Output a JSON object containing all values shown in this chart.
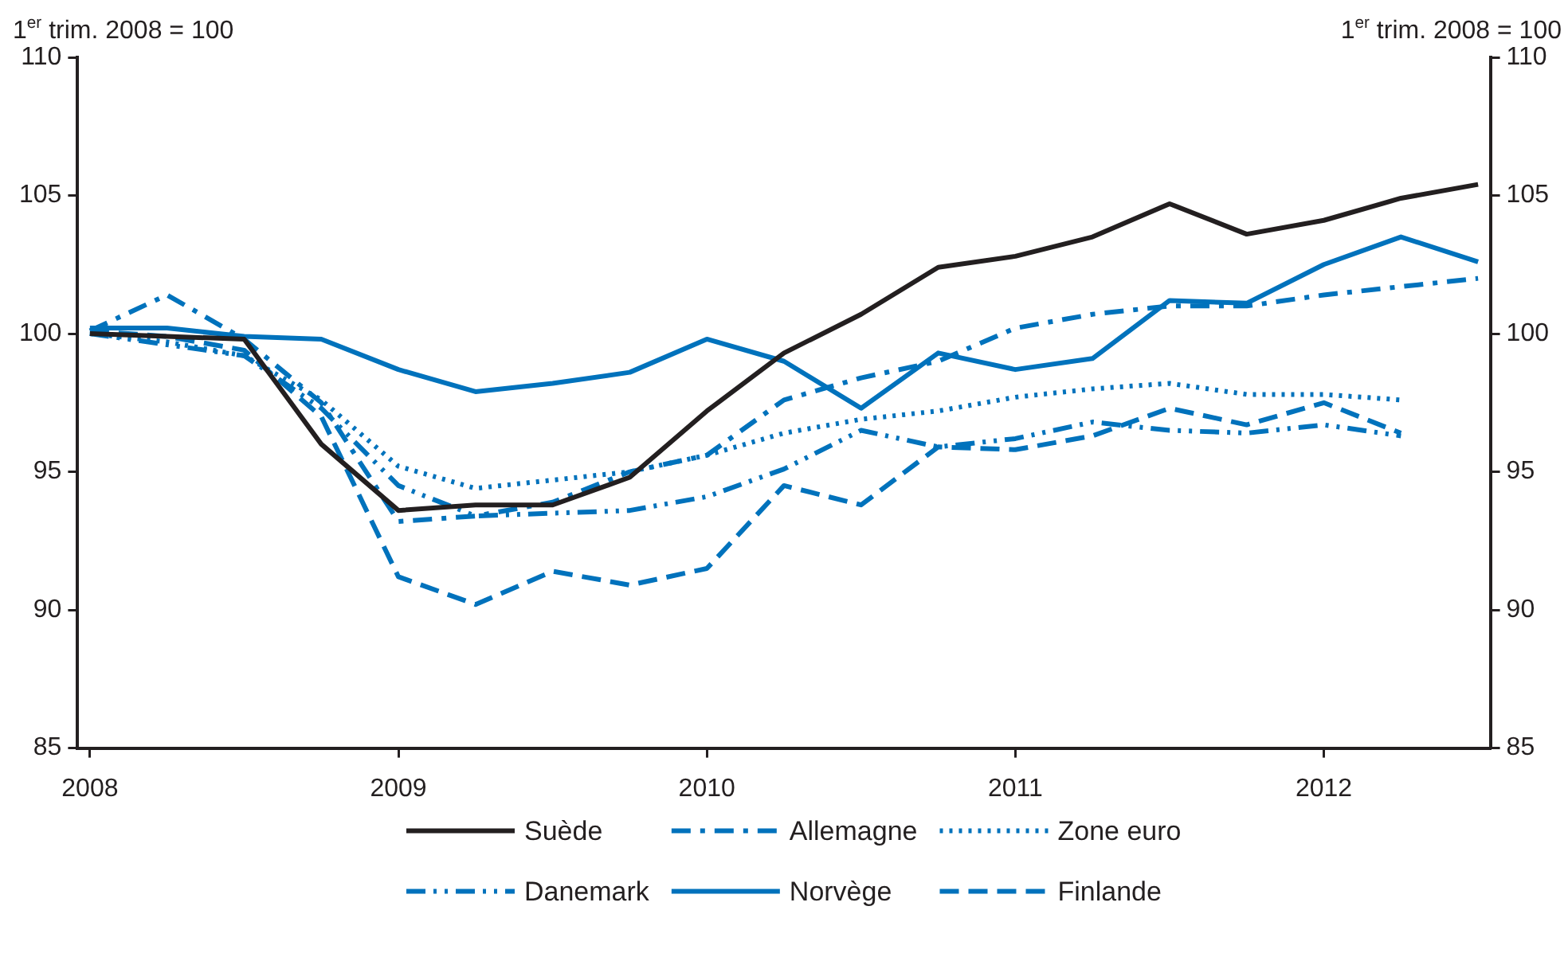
{
  "chart_data": {
    "type": "line",
    "ylabel": "1$^{er}$ trim. 2008 = 100",
    "y2label": "1$^{er}$ trim. 2008 = 100",
    "x": [
      2008,
      2008.25,
      2008.5,
      2008.75,
      2009,
      2009.25,
      2009.5,
      2009.75,
      2010,
      2010.25,
      2010.5,
      2010.75,
      2011,
      2011.25,
      2011.5,
      2011.75,
      2012,
      2012.25,
      2012.5
    ],
    "xlim": [
      2007.96,
      2012.54
    ],
    "xticks": [
      2008,
      2009,
      2010,
      2011,
      2012
    ],
    "ylim": [
      85,
      110
    ],
    "yticks": [
      85,
      90,
      95,
      100,
      105,
      110
    ],
    "y2lim": [
      85,
      110
    ],
    "y2ticks": [
      85,
      90,
      95,
      100,
      105,
      110
    ],
    "grid": false,
    "legend": "bottom",
    "marker": "none",
    "series": [
      {
        "name": "Suède",
        "color": "#231f20",
        "line_style": "solid",
        "values": [
          100,
          99.9,
          99.8,
          96.0,
          93.6,
          93.8,
          93.8,
          94.8,
          97.2,
          99.3,
          100.7,
          102.4,
          102.8,
          103.5,
          104.7,
          103.6,
          104.1,
          104.9,
          105.4
        ]
      },
      {
        "name": "Allemagne",
        "color": "#0072bc",
        "line_style": "dashdot",
        "values": [
          100.1,
          101.4,
          99.8,
          97.5,
          93.2,
          93.4,
          93.9,
          95.0,
          95.6,
          97.6,
          98.4,
          99.0,
          100.2,
          100.7,
          101.0,
          101.0,
          101.4,
          101.7,
          102.0
        ]
      },
      {
        "name": "Zone euro",
        "color": "#0072bc",
        "line_style": "dotted",
        "values": [
          100,
          99.7,
          99.2,
          97.6,
          95.2,
          94.4,
          94.7,
          95.0,
          95.6,
          96.4,
          96.9,
          97.2,
          97.7,
          98.0,
          98.2,
          97.8,
          97.8,
          97.6,
          null
        ]
      },
      {
        "name": "Danemark",
        "color": "#0072bc",
        "line_style": "dashdotdot",
        "values": [
          100,
          99.6,
          99.2,
          97.3,
          94.5,
          93.4,
          93.5,
          93.6,
          94.1,
          95.1,
          96.5,
          95.9,
          96.2,
          96.8,
          96.5,
          96.4,
          96.7,
          96.3,
          null
        ]
      },
      {
        "name": "Norvège",
        "color": "#0072bc",
        "line_style": "solid",
        "values": [
          100.2,
          100.2,
          99.9,
          99.8,
          98.7,
          97.9,
          98.2,
          98.6,
          99.8,
          99.0,
          97.3,
          99.3,
          98.7,
          99.1,
          101.2,
          101.1,
          102.5,
          103.5,
          102.6
        ]
      },
      {
        "name": "Finlande",
        "color": "#0072bc",
        "line_style": "dashed",
        "values": [
          100.1,
          99.9,
          99.4,
          97.0,
          91.2,
          90.2,
          91.4,
          90.9,
          91.5,
          94.5,
          93.8,
          95.9,
          95.8,
          96.3,
          97.3,
          96.7,
          97.5,
          96.4,
          null
        ]
      }
    ]
  }
}
